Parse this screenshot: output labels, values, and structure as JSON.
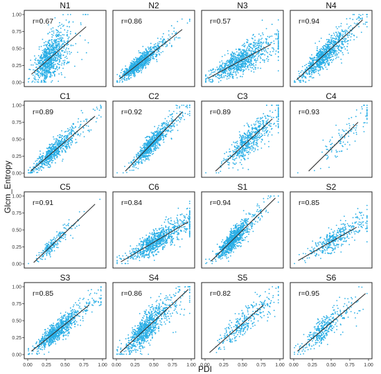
{
  "chart_data": {
    "type": "scatter",
    "ylabel": "Glcm_Entropy",
    "xlabel": "PDI",
    "xlim": [
      0,
      1
    ],
    "ylim": [
      0,
      1
    ],
    "x_ticks": [
      "0.00",
      "0.25",
      "0.50",
      "0.75",
      "1.00"
    ],
    "y_ticks": [
      "0.00",
      "0.25",
      "0.50",
      "0.75",
      "1.00"
    ],
    "point_color": "#29aee6",
    "line_color": "#333333",
    "grid": false,
    "panels": [
      {
        "title": "N1",
        "r": "r=0.67",
        "fit": [
          [
            0.05,
            0.12
          ],
          [
            0.78,
            0.82
          ]
        ],
        "center": [
          0.22,
          0.33
        ],
        "spread": [
          0.08,
          0.18
        ],
        "count": 1100
      },
      {
        "title": "N2",
        "r": "r=0.86",
        "fit": [
          [
            0.04,
            0.05
          ],
          [
            0.88,
            0.78
          ]
        ],
        "center": [
          0.22,
          0.23
        ],
        "spread": [
          0.1,
          0.07
        ],
        "count": 900
      },
      {
        "title": "N3",
        "r": "r=0.57",
        "fit": [
          [
            0.04,
            0.06
          ],
          [
            0.88,
            0.56
          ]
        ],
        "center": [
          0.32,
          0.22
        ],
        "spread": [
          0.16,
          0.1
        ],
        "count": 1600
      },
      {
        "title": "N4",
        "r": "r=0.94",
        "fit": [
          [
            0.04,
            0.04
          ],
          [
            0.92,
            0.92
          ]
        ],
        "center": [
          0.3,
          0.28
        ],
        "spread": [
          0.12,
          0.1
        ],
        "count": 1500
      },
      {
        "title": "C1",
        "r": "r=0.89",
        "fit": [
          [
            0.04,
            0.03
          ],
          [
            0.9,
            0.84
          ]
        ],
        "center": [
          0.25,
          0.18
        ],
        "spread": [
          0.12,
          0.08
        ],
        "count": 700
      },
      {
        "title": "C2",
        "r": "r=0.92",
        "fit": [
          [
            0.12,
            0.03
          ],
          [
            0.88,
            0.9
          ]
        ],
        "center": [
          0.38,
          0.33
        ],
        "spread": [
          0.1,
          0.07
        ],
        "count": 800
      },
      {
        "title": "C3",
        "r": "r=0.89",
        "fit": [
          [
            0.14,
            0.03
          ],
          [
            0.9,
            0.8
          ]
        ],
        "center": [
          0.48,
          0.4
        ],
        "spread": [
          0.14,
          0.1
        ],
        "count": 600
      },
      {
        "title": "C4",
        "r": "r=0.93",
        "fit": [
          [
            0.2,
            0.03
          ],
          [
            0.86,
            0.75
          ]
        ],
        "center": [
          0.56,
          0.45
        ],
        "spread": [
          0.15,
          0.1
        ],
        "count": 120
      },
      {
        "title": "C5",
        "r": "r=0.91",
        "fit": [
          [
            0.08,
            0.02
          ],
          [
            0.9,
            0.88
          ]
        ],
        "center": [
          0.25,
          0.1
        ],
        "spread": [
          0.1,
          0.06
        ],
        "count": 220
      },
      {
        "title": "C6",
        "r": "r=0.84",
        "fit": [
          [
            0.06,
            0.03
          ],
          [
            0.96,
            0.62
          ]
        ],
        "center": [
          0.4,
          0.26
        ],
        "spread": [
          0.16,
          0.08
        ],
        "count": 1400
      },
      {
        "title": "S1",
        "r": "r=0.94",
        "fit": [
          [
            0.08,
            0.04
          ],
          [
            0.94,
            0.97
          ]
        ],
        "center": [
          0.3,
          0.32
        ],
        "spread": [
          0.08,
          0.08
        ],
        "count": 1000
      },
      {
        "title": "S2",
        "r": "r=0.85",
        "fit": [
          [
            0.06,
            0.05
          ],
          [
            0.84,
            0.54
          ]
        ],
        "center": [
          0.42,
          0.28
        ],
        "spread": [
          0.15,
          0.08
        ],
        "count": 400
      },
      {
        "title": "S3",
        "r": "r=0.85",
        "fit": [
          [
            0.05,
            0.05
          ],
          [
            0.82,
            0.73
          ]
        ],
        "center": [
          0.28,
          0.24
        ],
        "spread": [
          0.12,
          0.08
        ],
        "count": 1400
      },
      {
        "title": "S4",
        "r": "r=0.86",
        "fit": [
          [
            0.05,
            0.03
          ],
          [
            0.96,
            0.96
          ]
        ],
        "center": [
          0.3,
          0.32
        ],
        "spread": [
          0.12,
          0.12
        ],
        "count": 1700
      },
      {
        "title": "S5",
        "r": "r=0.82",
        "fit": [
          [
            0.06,
            0.03
          ],
          [
            0.78,
            0.73
          ]
        ],
        "center": [
          0.4,
          0.33
        ],
        "spread": [
          0.14,
          0.1
        ],
        "count": 320
      },
      {
        "title": "S6",
        "r": "r=0.95",
        "fit": [
          [
            0.05,
            0.05
          ],
          [
            0.96,
            0.9
          ]
        ],
        "center": [
          0.3,
          0.28
        ],
        "spread": [
          0.12,
          0.1
        ],
        "count": 380
      }
    ]
  }
}
